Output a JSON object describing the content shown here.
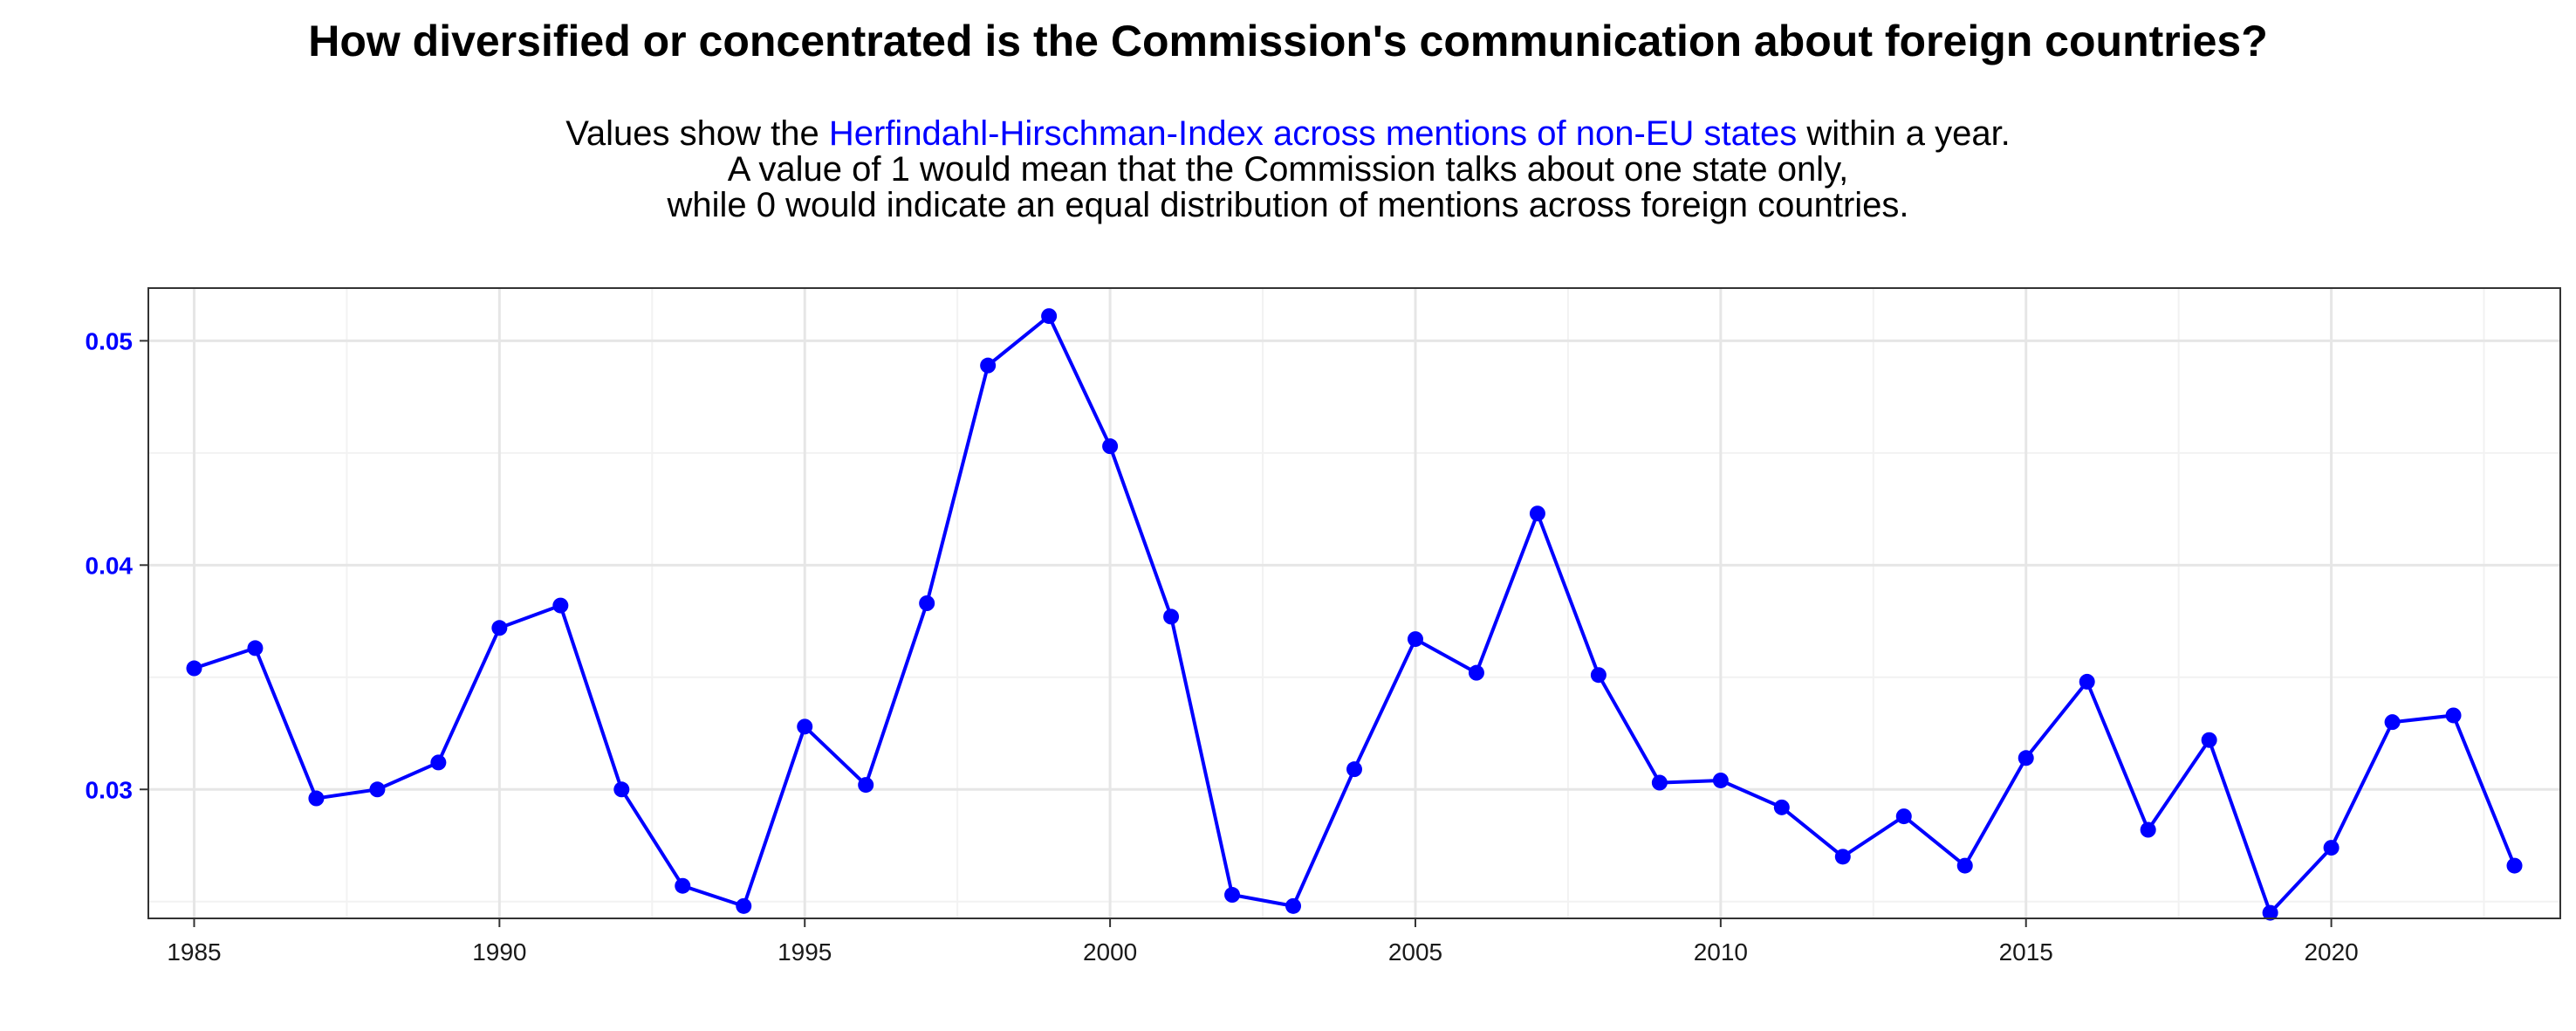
{
  "colors": {
    "series": "#0000ff",
    "highlight": "#0000ff",
    "grid_major": "#e6e6e6",
    "grid_minor": "#f2f2f2",
    "panel_border": "#333333"
  },
  "chart_data": {
    "type": "line",
    "title": "How diversified or concentrated is the Commission's communication about foreign countries?",
    "subtitle": {
      "line1_prefix": "Values show the ",
      "line1_highlight": "Herfindahl-Hirschman-Index across mentions of non-EU states",
      "line1_suffix": " within a year.",
      "line2": "A value of 1 would mean that the Commission talks about one state only,",
      "line3": "while 0 would indicate an equal distribution of mentions across foreign countries."
    },
    "xlabel": "",
    "ylabel": "",
    "xlim": [
      1984.25,
      2023.75
    ],
    "ylim": [
      0.02425,
      0.05235
    ],
    "x_ticks": [
      1985,
      1990,
      1995,
      2000,
      2005,
      2010,
      2015,
      2020
    ],
    "x_tick_labels": [
      "1985",
      "1990",
      "1995",
      "2000",
      "2005",
      "2010",
      "2015",
      "2020"
    ],
    "y_ticks": [
      0.03,
      0.04,
      0.05
    ],
    "y_tick_labels": [
      "0.03",
      "0.04",
      "0.05"
    ],
    "grid": true,
    "legend": "none",
    "series": [
      {
        "x": [
          1985,
          1986,
          1987,
          1988,
          1989,
          1990,
          1991,
          1992,
          1993,
          1994,
          1995,
          1996,
          1997,
          1998,
          1999,
          2000,
          2001,
          2002,
          2003,
          2004,
          2005,
          2006,
          2007,
          2008,
          2009,
          2010,
          2011,
          2012,
          2013,
          2014,
          2015,
          2016,
          2017,
          2018,
          2019,
          2020,
          2021,
          2022,
          2023
        ],
        "values": [
          0.0354,
          0.0363,
          0.0296,
          0.03,
          0.0312,
          0.0372,
          0.0382,
          0.03,
          0.0257,
          0.0248,
          0.0328,
          0.0302,
          0.0383,
          0.0489,
          0.0511,
          0.0453,
          0.0377,
          0.0253,
          0.0248,
          0.0309,
          0.0367,
          0.0352,
          0.0423,
          0.0351,
          0.0303,
          0.0304,
          0.0292,
          0.027,
          0.0288,
          0.0266,
          0.0314,
          0.0348,
          0.0282,
          0.0322,
          0.0245,
          0.0274,
          0.033,
          0.0333,
          0.0266
        ]
      }
    ]
  }
}
